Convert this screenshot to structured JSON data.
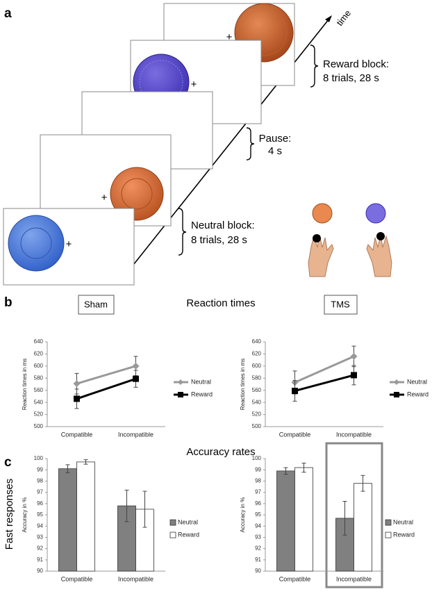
{
  "panel_a": {
    "label": "a",
    "time_label": "time",
    "fixation": "+",
    "reward_block": [
      "Reward block:",
      "8 trials, 28 s"
    ],
    "pause": [
      "Pause:",
      "4 s"
    ],
    "neutral_block": [
      "Neutral block:",
      "8 trials, 28 s"
    ]
  },
  "panel_b": {
    "label": "b",
    "title": "Reaction times",
    "conditions": [
      "Sham",
      "TMS"
    ]
  },
  "panel_c": {
    "label": "c",
    "title": "Accuracy rates",
    "row_label": "Fast responses"
  },
  "chart_data": [
    {
      "type": "line",
      "y_label": "Reaction times in ms",
      "categories": [
        "Compatible",
        "Incompatible"
      ],
      "series": [
        {
          "name": "Neutral",
          "color": "#999999",
          "values": [
            571,
            600
          ],
          "errors": [
            17,
            16
          ]
        },
        {
          "name": "Reward",
          "color": "#000000",
          "values": [
            546,
            579
          ],
          "errors": [
            16,
            14
          ]
        }
      ],
      "ylim": [
        500,
        640
      ],
      "yticks": [
        500,
        520,
        540,
        560,
        580,
        600,
        620,
        640
      ]
    },
    {
      "type": "line",
      "y_label": "Reaction times in ms",
      "categories": [
        "Compatible",
        "Incompatible"
      ],
      "series": [
        {
          "name": "Neutral",
          "color": "#999999",
          "values": [
            573,
            616
          ],
          "errors": [
            19,
            17
          ]
        },
        {
          "name": "Reward",
          "color": "#000000",
          "values": [
            559,
            585
          ],
          "errors": [
            17,
            16
          ]
        }
      ],
      "ylim": [
        500,
        640
      ],
      "yticks": [
        500,
        520,
        540,
        560,
        580,
        600,
        620,
        640
      ]
    },
    {
      "type": "bar",
      "y_label": "Accuracy in %",
      "categories": [
        "Compatible",
        "Incompatible"
      ],
      "series": [
        {
          "name": "Neutral",
          "color": "#808080",
          "values": [
            99.1,
            95.8
          ],
          "errors": [
            0.35,
            1.4
          ]
        },
        {
          "name": "Reward",
          "color": "#ffffff",
          "values": [
            99.7,
            95.5
          ],
          "errors": [
            0.2,
            1.6
          ]
        }
      ],
      "ylim": [
        90,
        100
      ],
      "yticks": [
        90,
        91,
        92,
        93,
        94,
        95,
        96,
        97,
        98,
        99,
        100
      ]
    },
    {
      "type": "bar",
      "y_label": "Accuracy in %",
      "categories": [
        "Compatible",
        "Incompatible"
      ],
      "series": [
        {
          "name": "Neutral",
          "color": "#808080",
          "values": [
            98.9,
            94.7
          ],
          "errors": [
            0.3,
            1.5
          ]
        },
        {
          "name": "Reward",
          "color": "#ffffff",
          "values": [
            99.2,
            97.8
          ],
          "errors": [
            0.4,
            0.7
          ]
        }
      ],
      "ylim": [
        90,
        100
      ],
      "yticks": [
        90,
        91,
        92,
        93,
        94,
        95,
        96,
        97,
        98,
        99,
        100
      ]
    }
  ]
}
